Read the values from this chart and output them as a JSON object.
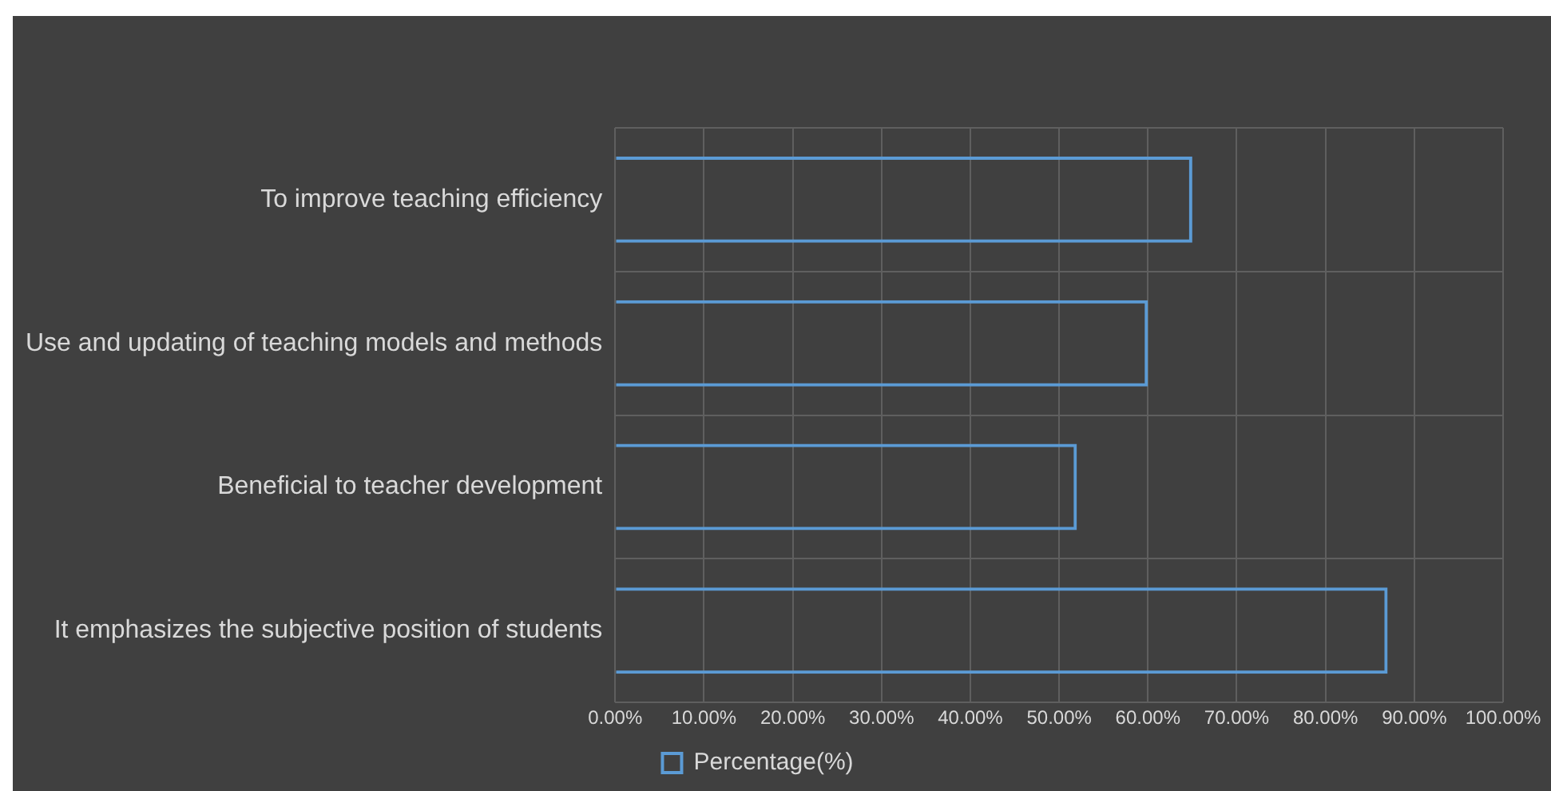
{
  "chart_data": {
    "type": "bar",
    "orientation": "horizontal",
    "categories": [
      "To improve teaching efficiency",
      "Use and updating of teaching models and methods",
      "Beneficial to teacher development",
      "It emphasizes the subjective position of students"
    ],
    "series": [
      {
        "name": "Percentage(%)",
        "color": "#5b9bd5",
        "values": [
          65,
          60,
          52,
          87
        ]
      }
    ],
    "xlim": [
      0,
      100
    ],
    "xticks": [
      {
        "value": 0,
        "label": "0.00%"
      },
      {
        "value": 10,
        "label": "10.00%"
      },
      {
        "value": 20,
        "label": "20.00%"
      },
      {
        "value": 30,
        "label": "30.00%"
      },
      {
        "value": 40,
        "label": "40.00%"
      },
      {
        "value": 50,
        "label": "50.00%"
      },
      {
        "value": 60,
        "label": "60.00%"
      },
      {
        "value": 70,
        "label": "70.00%"
      },
      {
        "value": 80,
        "label": "80.00%"
      },
      {
        "value": 90,
        "label": "90.00%"
      },
      {
        "value": 100,
        "label": "100.00%"
      }
    ],
    "grid": true,
    "legend": "bottom"
  }
}
